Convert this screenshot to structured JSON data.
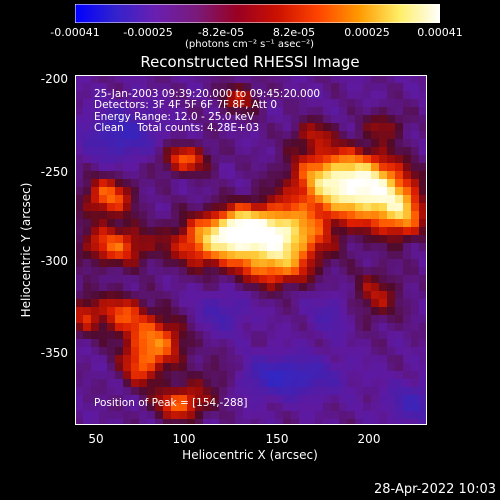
{
  "colorbar": {
    "ticks": [
      "-0.00041",
      "-0.00025",
      "-8.2e-05",
      "8.2e-05",
      "0.00025",
      "0.00041"
    ],
    "unit_label": "(photons cm⁻² s⁻¹ asec⁻²)",
    "gradient_colors": [
      "#0000ff",
      "#3322cc",
      "#6a1fb0",
      "#7a1a7a",
      "#990022",
      "#cc1100",
      "#ff4400",
      "#ff9900",
      "#ffee66",
      "#ffffff"
    ]
  },
  "title": "Reconstructed RHESSI Image",
  "annotations": {
    "time_range": "25-Jan-2003 09:39:20.000 to 09:45:20.000",
    "detectors": "Detectors: 3F 4F 5F 6F 7F 8F, Att 0",
    "energy": "Energy Range: 12.0 - 25.0 keV",
    "method": "Clean    Total counts: 4.28E+03",
    "peak": "Position of Peak = [154,-288]"
  },
  "axes": {
    "xlabel": "Heliocentric X (arcsec)",
    "ylabel": "Heliocentric Y (arcsec)",
    "xticks": [
      "50",
      "100",
      "150",
      "200"
    ],
    "yticks": [
      "-200",
      "-250",
      "-300",
      "-350"
    ]
  },
  "footer": {
    "date": "28-Apr-2022 10:03"
  },
  "chart_data": {
    "type": "heatmap",
    "title": "Reconstructed RHESSI Image",
    "xlabel": "Heliocentric X (arcsec)",
    "ylabel": "Heliocentric Y (arcsec)",
    "xlim": [
      40,
      233
    ],
    "ylim": [
      -392,
      -197
    ],
    "value_range": [
      -0.00041,
      0.00041
    ],
    "peak": {
      "x": 154,
      "y": -288
    },
    "sources": [
      {
        "x": 150,
        "y": -286,
        "sx": 18,
        "sy": 11,
        "amp": 1.0
      },
      {
        "x": 130,
        "y": -283,
        "sx": 10,
        "sy": 8,
        "amp": 0.55
      },
      {
        "x": 112,
        "y": -290,
        "sx": 14,
        "sy": 10,
        "amp": 0.6
      },
      {
        "x": 150,
        "y": -305,
        "sx": 14,
        "sy": 8,
        "amp": 0.45
      },
      {
        "x": 181,
        "y": -256,
        "sx": 16,
        "sy": 12,
        "amp": 0.82
      },
      {
        "x": 205,
        "y": -262,
        "sx": 14,
        "sy": 13,
        "amp": 0.78
      },
      {
        "x": 220,
        "y": -275,
        "sx": 9,
        "sy": 10,
        "amp": 0.5
      },
      {
        "x": 58,
        "y": -265,
        "sx": 10,
        "sy": 8,
        "amp": 0.55
      },
      {
        "x": 62,
        "y": -292,
        "sx": 14,
        "sy": 8,
        "amp": 0.52
      },
      {
        "x": 100,
        "y": -244,
        "sx": 10,
        "sy": 6,
        "amp": 0.5
      },
      {
        "x": 65,
        "y": -330,
        "sx": 10,
        "sy": 8,
        "amp": 0.45
      },
      {
        "x": 85,
        "y": -345,
        "sx": 12,
        "sy": 10,
        "amp": 0.55
      },
      {
        "x": 76,
        "y": -360,
        "sx": 8,
        "sy": 8,
        "amp": 0.4
      },
      {
        "x": 98,
        "y": -380,
        "sx": 10,
        "sy": 7,
        "amp": 0.55
      },
      {
        "x": 130,
        "y": -210,
        "sx": 8,
        "sy": 6,
        "amp": 0.35
      },
      {
        "x": 205,
        "y": -320,
        "sx": 10,
        "sy": 10,
        "amp": 0.32
      },
      {
        "x": 210,
        "y": -225,
        "sx": 8,
        "sy": 6,
        "amp": 0.28
      },
      {
        "x": 170,
        "y": -230,
        "sx": 8,
        "sy": 6,
        "amp": 0.3
      },
      {
        "x": 45,
        "y": -330,
        "sx": 6,
        "sy": 8,
        "amp": 0.35
      },
      {
        "x": 120,
        "y": -365,
        "sx": 10,
        "sy": 8,
        "amp": 0.25
      }
    ],
    "negative_regions": [
      {
        "x": 65,
        "y": -230,
        "sx": 14,
        "sy": 10,
        "amp": 0.45
      },
      {
        "x": 155,
        "y": -365,
        "sx": 20,
        "sy": 8,
        "amp": 0.5
      },
      {
        "x": 120,
        "y": -330,
        "sx": 10,
        "sy": 8,
        "amp": 0.3
      },
      {
        "x": 225,
        "y": -380,
        "sx": 10,
        "sy": 8,
        "amp": 0.35
      },
      {
        "x": 180,
        "y": -330,
        "sx": 8,
        "sy": 8,
        "amp": 0.25
      }
    ]
  }
}
